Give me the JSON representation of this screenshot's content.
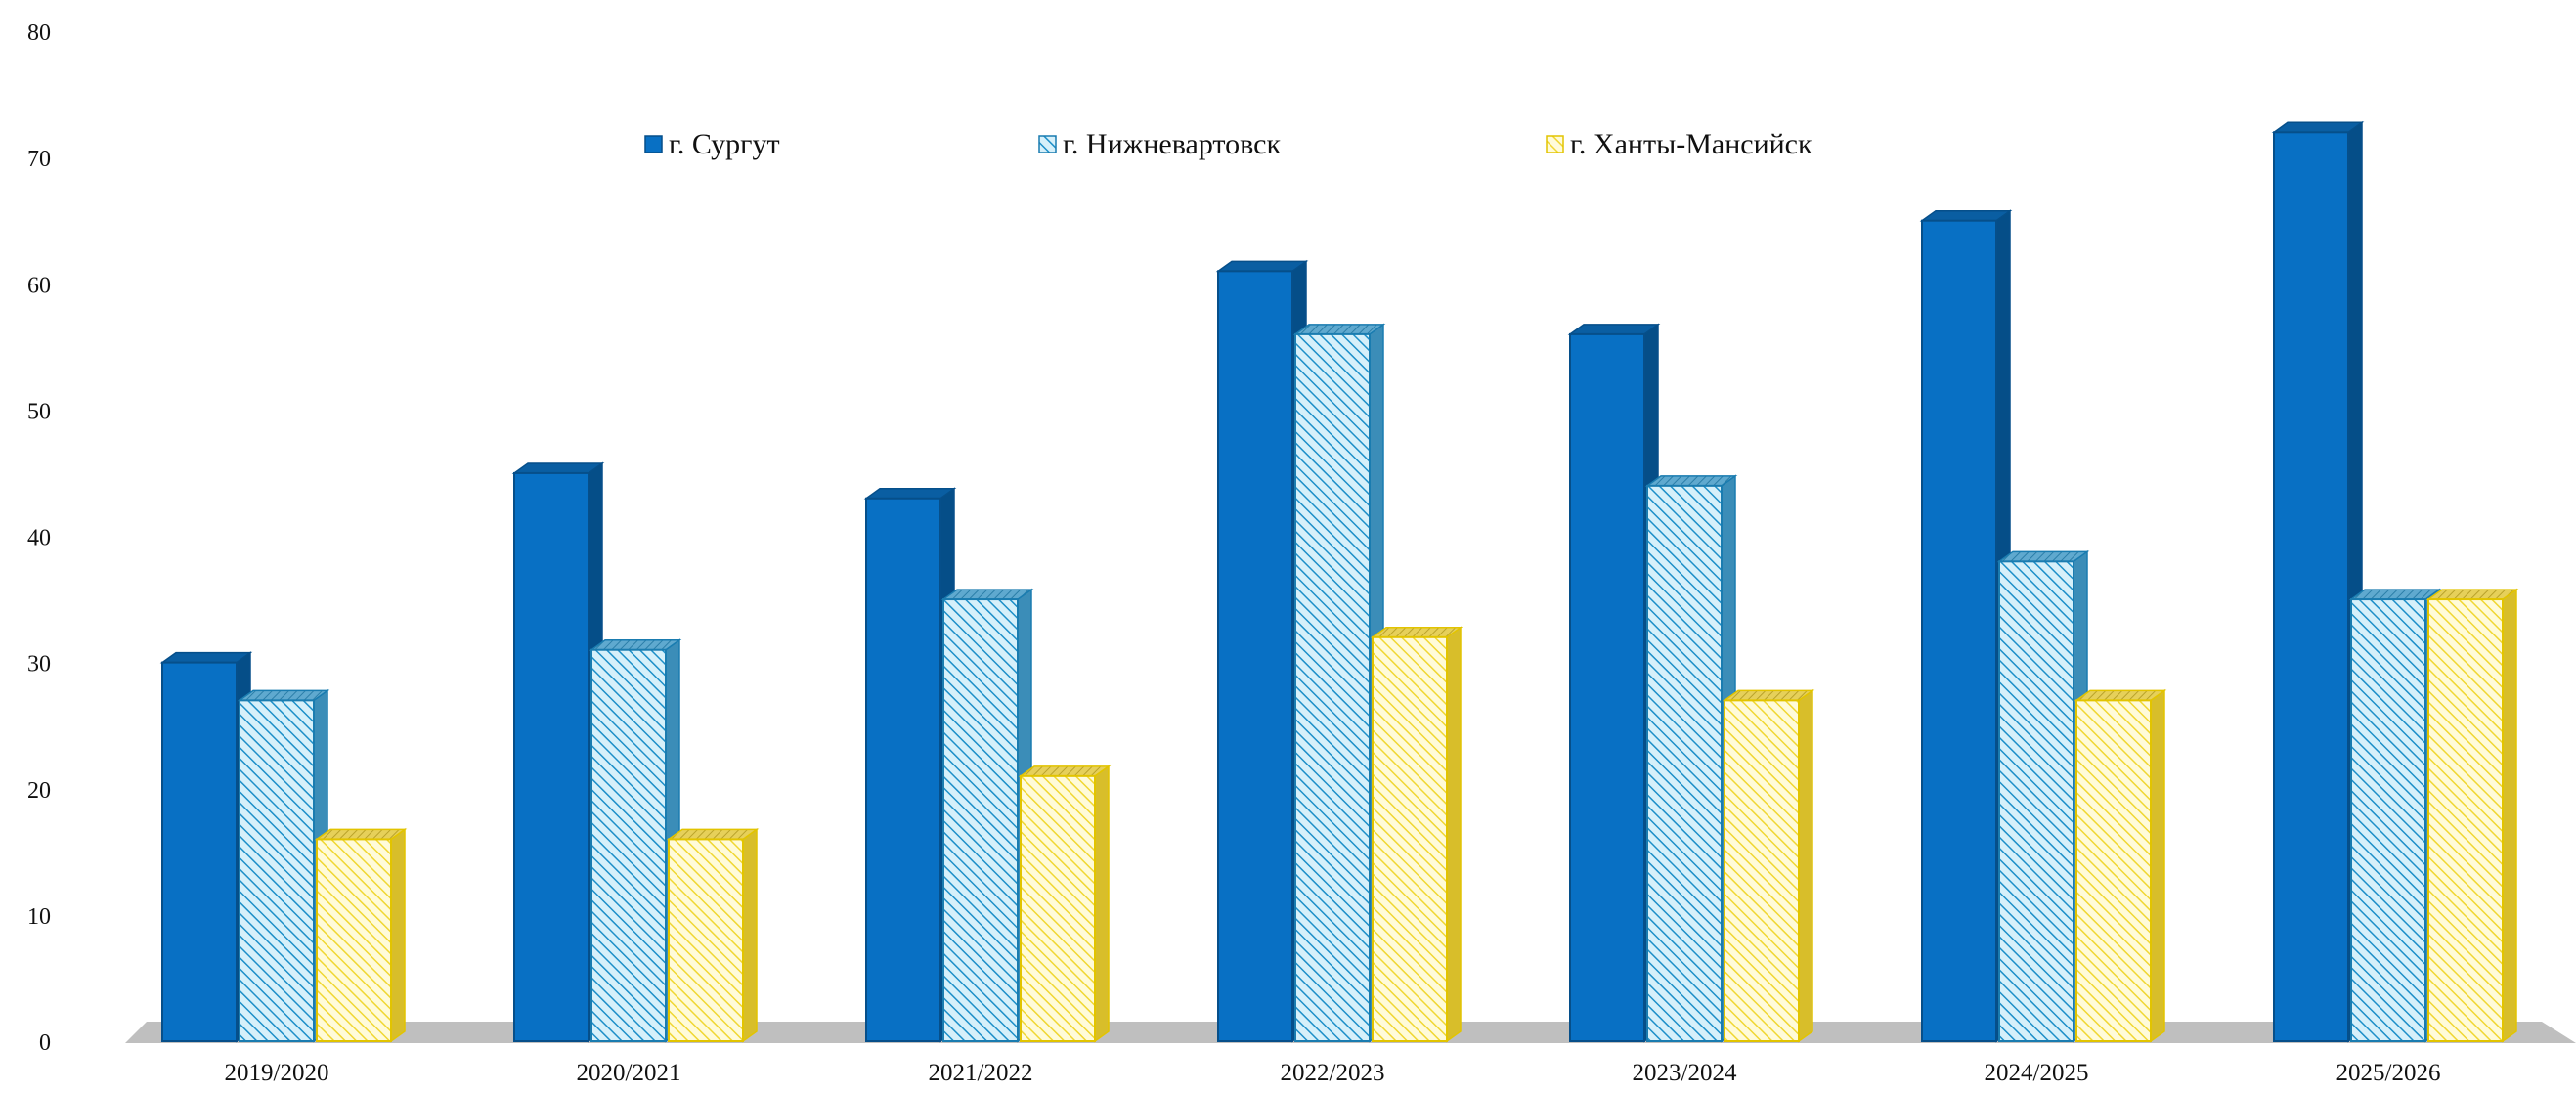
{
  "chart_data": {
    "type": "bar",
    "title": "",
    "xlabel": "",
    "ylabel": "",
    "ylim": [
      0,
      80
    ],
    "yticks": [
      0,
      10,
      20,
      30,
      40,
      50,
      60,
      70,
      80
    ],
    "categories": [
      "2019/2020",
      "2020/2021",
      "2021/2022",
      "2022/2023",
      "2023/2024",
      "2024/2025",
      "2025/2026"
    ],
    "series": [
      {
        "name": "г. Сургут",
        "values": [
          30,
          45,
          43,
          61,
          56,
          65,
          72
        ],
        "color": "#0870C4",
        "pattern": "solid"
      },
      {
        "name": "г. Нижневартовск",
        "values": [
          27,
          31,
          35,
          56,
          44,
          38,
          35
        ],
        "color": "#1D8FC8",
        "pattern": "hatch-blue"
      },
      {
        "name": "г. Ханты-Мансийск",
        "values": [
          16,
          16,
          21,
          32,
          27,
          27,
          35
        ],
        "color": "#F2D61A",
        "pattern": "hatch-yellow"
      }
    ],
    "legend_position": "top",
    "grid": false,
    "style": "3d-column"
  }
}
